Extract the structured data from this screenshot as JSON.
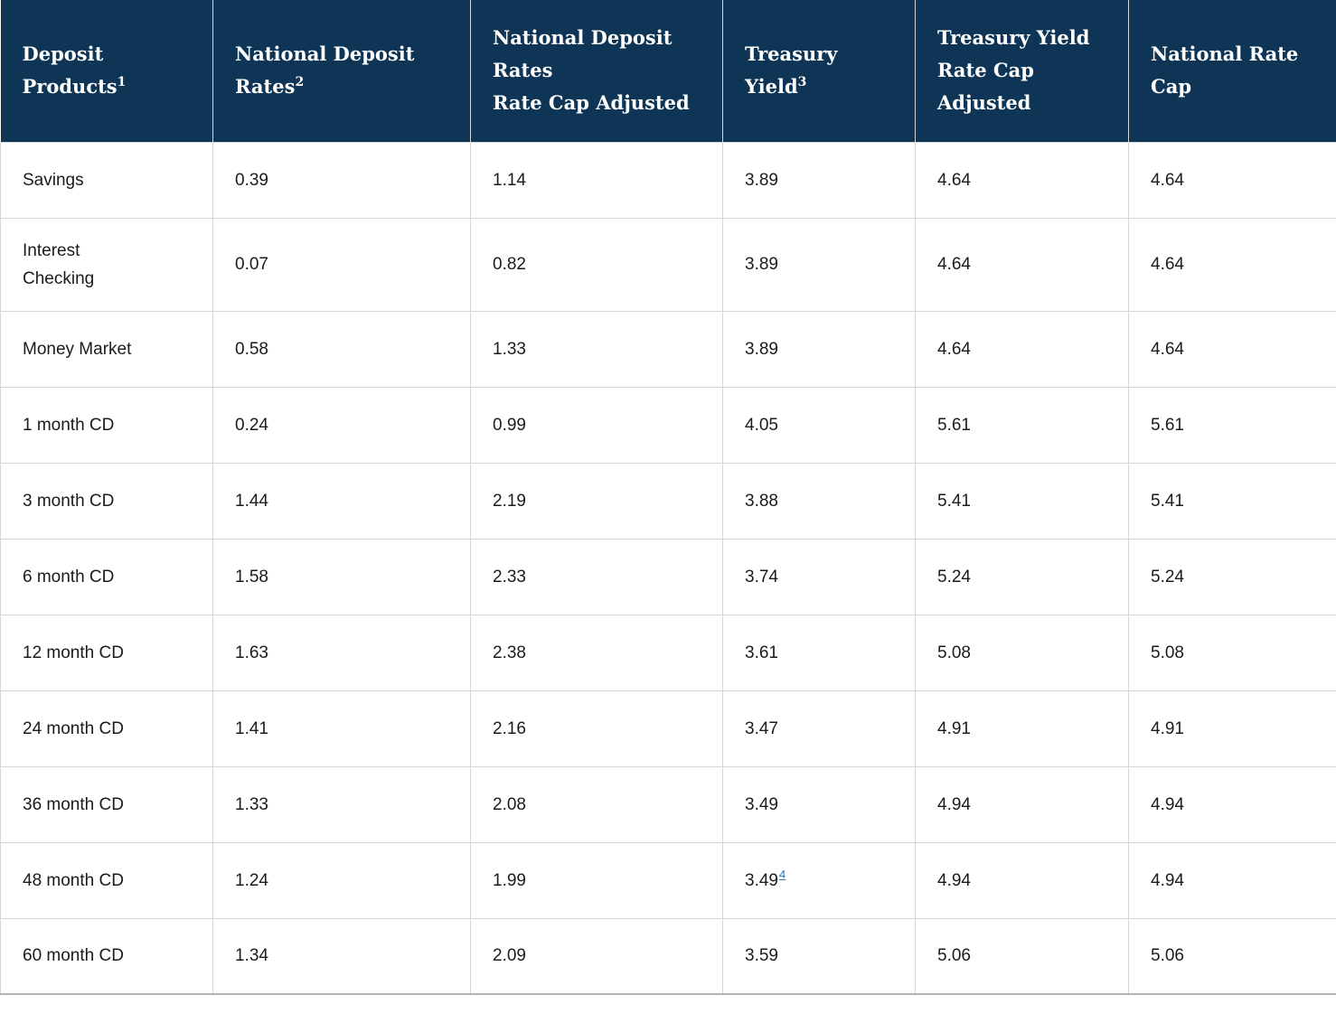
{
  "colors": {
    "header_bg": "#0e3556",
    "header_text": "#ffffff",
    "body_text": "#1b1b1b",
    "grid_border": "#d6d7d9",
    "footnote_link": "#2573b9"
  },
  "table": {
    "columns": [
      {
        "label": "Deposit\nProducts",
        "sup": "1"
      },
      {
        "label": "National Deposit\nRates",
        "sup": "2"
      },
      {
        "label": "National Deposit\nRates\nRate Cap Adjusted",
        "sup": ""
      },
      {
        "label": "Treasury\nYield",
        "sup": "3"
      },
      {
        "label": "Treasury Yield\nRate Cap\nAdjusted",
        "sup": ""
      },
      {
        "label": "National Rate\nCap",
        "sup": ""
      }
    ],
    "rows": [
      {
        "product": "Savings",
        "values": [
          "0.39",
          "1.14",
          "3.89",
          "4.64",
          "4.64"
        ]
      },
      {
        "product": "Interest\nChecking",
        "values": [
          "0.07",
          "0.82",
          "3.89",
          "4.64",
          "4.64"
        ]
      },
      {
        "product": "Money Market",
        "values": [
          "0.58",
          "1.33",
          "3.89",
          "4.64",
          "4.64"
        ]
      },
      {
        "product": "1 month CD",
        "values": [
          "0.24",
          "0.99",
          "4.05",
          "5.61",
          "5.61"
        ]
      },
      {
        "product": "3 month CD",
        "values": [
          "1.44",
          "2.19",
          "3.88",
          "5.41",
          "5.41"
        ]
      },
      {
        "product": "6 month CD",
        "values": [
          "1.58",
          "2.33",
          "3.74",
          "5.24",
          "5.24"
        ]
      },
      {
        "product": "12 month CD",
        "values": [
          "1.63",
          "2.38",
          "3.61",
          "5.08",
          "5.08"
        ]
      },
      {
        "product": "24 month CD",
        "values": [
          "1.41",
          "2.16",
          "3.47",
          "4.91",
          "4.91"
        ]
      },
      {
        "product": "36 month CD",
        "values": [
          "1.33",
          "2.08",
          "3.49",
          "4.94",
          "4.94"
        ]
      },
      {
        "product": "48 month CD",
        "values": [
          "1.24",
          "1.99",
          "3.49",
          "4.94",
          "4.94"
        ],
        "footnote": {
          "value_index": 2,
          "sup": "4"
        }
      },
      {
        "product": "60 month CD",
        "values": [
          "1.34",
          "2.09",
          "3.59",
          "5.06",
          "5.06"
        ]
      }
    ]
  }
}
